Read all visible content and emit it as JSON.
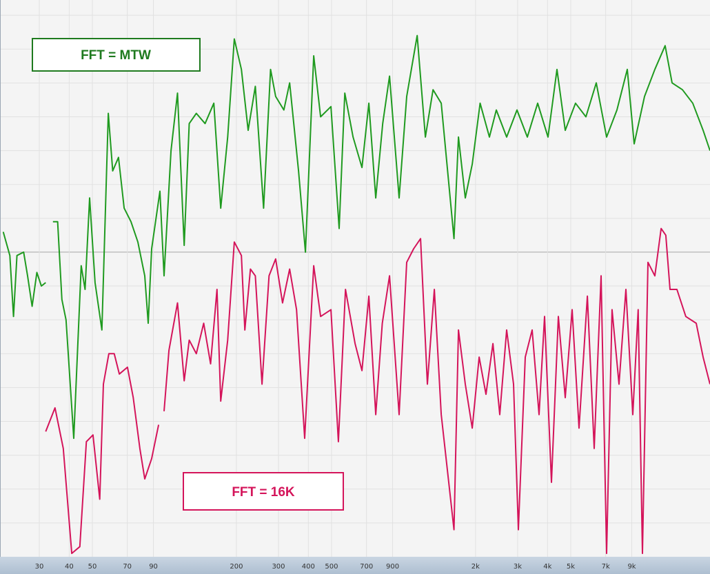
{
  "chart_data": {
    "type": "line",
    "xscale": "log",
    "grid": true,
    "xlim": [
      20.55,
      19110
    ],
    "ylim": [
      -160,
      4.5
    ],
    "xticks": [
      30,
      40,
      50,
      70,
      90,
      200,
      300,
      400,
      500,
      700,
      900,
      {
        "value": 2000,
        "label": "2k"
      },
      {
        "value": 3000,
        "label": "3k"
      },
      {
        "value": 4000,
        "label": "4k"
      },
      {
        "value": 5000,
        "label": "5k"
      },
      {
        "value": 7000,
        "label": "7k"
      },
      {
        "value": 9000,
        "label": "9k"
      }
    ],
    "yticks": [
      0,
      -10,
      -20,
      -30,
      -40,
      -50,
      -60,
      -70,
      -80,
      -90,
      -100,
      -110,
      -120,
      -130,
      -140,
      -150
    ],
    "reference_line": -70,
    "series": [
      {
        "name": "FFT = MTW",
        "color": "#1f9a1f",
        "x": [
          21.2,
          22.6,
          23.4,
          24.2,
          25.8,
          26.8,
          28.0,
          29.3,
          30.6,
          31.9,
          33.5,
          34.2,
          35.8,
          37.3,
          38.8,
          41.8,
          44.9,
          46.6,
          48.7,
          51.3,
          54.8,
          58.3,
          60.8,
          64.3,
          67.9,
          72.5,
          77.5,
          82.8,
          85.6,
          88.5,
          95.8,
          99.7,
          106.6,
          113.5,
          121,
          127,
          136,
          148,
          161,
          172,
          184,
          196,
          210,
          224,
          240,
          260,
          278,
          292,
          316,
          334,
          364,
          389,
          421,
          450,
          497,
          538,
          568,
          615,
          670,
          716,
          765,
          818,
          874,
          958,
          1031,
          1140,
          1234,
          1328,
          1437,
          1625,
          1697,
          1812,
          1937,
          2090,
          2286,
          2443,
          2698,
          2981,
          3293,
          3637,
          4019,
          4379,
          4743,
          5236,
          5787,
          6393,
          7062,
          7802,
          8618,
          9209,
          10173,
          11238,
          12405,
          13266,
          14655,
          16190,
          17883,
          19110
        ],
        "values": [
          -64,
          -71,
          -89,
          -71,
          -70,
          -77,
          -86,
          -76,
          -80,
          -79,
          null,
          -61,
          -61,
          -84,
          -90,
          -125,
          -74,
          -81,
          -54,
          -79,
          -93,
          -29,
          -46,
          -42,
          -57,
          -61,
          -67,
          -77,
          -91,
          -69,
          -52,
          -77,
          -40,
          -23,
          -68,
          -32,
          -29,
          -32,
          -26,
          -57,
          -36,
          -7,
          -16,
          -34,
          -21,
          -57,
          -16,
          -24,
          -28,
          -20,
          -46,
          -70,
          -12,
          -30,
          -27,
          -63,
          -23,
          -36,
          -45,
          -26,
          -54,
          -32,
          -18,
          -54,
          -24,
          -6,
          -36,
          -22,
          -26,
          -66,
          -36,
          -54,
          -44,
          -26,
          -36,
          -28,
          -36,
          -28,
          -36,
          -26,
          -36,
          -16,
          -34,
          -26,
          -30,
          -20,
          -36,
          -28,
          -16,
          -38,
          -24,
          -16,
          -9,
          -20,
          -22,
          -26,
          -34,
          -40
        ]
      },
      {
        "name": "FFT = 16K",
        "color": "#d4145a",
        "x": [
          31.9,
          34.9,
          37.8,
          41.0,
          44.3,
          47.2,
          50.3,
          53.7,
          55.6,
          58.6,
          61.7,
          64.8,
          70.1,
          74.1,
          79.0,
          82.8,
          88.5,
          94.6,
          96.5,
          99.7,
          104.5,
          113.5,
          121,
          127,
          136,
          146,
          156,
          166,
          172,
          184,
          196,
          210,
          217,
          229,
          240,
          256,
          274,
          292,
          312,
          334,
          357,
          386,
          421,
          450,
          497,
          534,
          572,
          627,
          670,
          716,
          765,
          815,
          874,
          958,
          1031,
          1102,
          1178,
          1258,
          1345,
          1437,
          1625,
          1697,
          1812,
          1937,
          2070,
          2211,
          2364,
          2525,
          2698,
          2884,
          3020,
          3227,
          3450,
          3686,
          3887,
          4153,
          4438,
          4743,
          5068,
          5416,
          5867,
          6267,
          6697,
          7062,
          7445,
          7960,
          8504,
          9087,
          9570,
          9973,
          10516,
          11238,
          11934,
          12491,
          13002,
          13896,
          15142,
          16735,
          17883,
          19110
        ],
        "values": [
          -123,
          -116,
          -128,
          -159,
          -157,
          -126,
          -124,
          -143,
          -109,
          -100,
          -100,
          -106,
          -104,
          -113,
          -128,
          -137,
          -131,
          -121,
          null,
          -117,
          -99,
          -85,
          -108,
          -96,
          -100,
          -91,
          -103,
          -81,
          -114,
          -96,
          -67,
          -71,
          -93,
          -75,
          -77,
          -109,
          -77,
          -72,
          -85,
          -75,
          -87,
          -125,
          -74,
          -89,
          -87,
          -126,
          -81,
          -97,
          -105,
          -83,
          -118,
          -91,
          -77,
          -118,
          -73,
          -69,
          -66,
          -109,
          -81,
          -118,
          -152,
          -93,
          -109,
          -122,
          -101,
          -112,
          -97,
          -118,
          -93,
          -109,
          -152,
          -101,
          -93,
          -118,
          -89,
          -138,
          -89,
          -113,
          -87,
          -122,
          -83,
          -128,
          -77,
          -159,
          -87,
          -109,
          -81,
          -118,
          -87,
          -159,
          -73,
          -77,
          -63,
          -65,
          -81,
          -81,
          -89,
          -91,
          -101,
          -109
        ]
      }
    ]
  }
}
